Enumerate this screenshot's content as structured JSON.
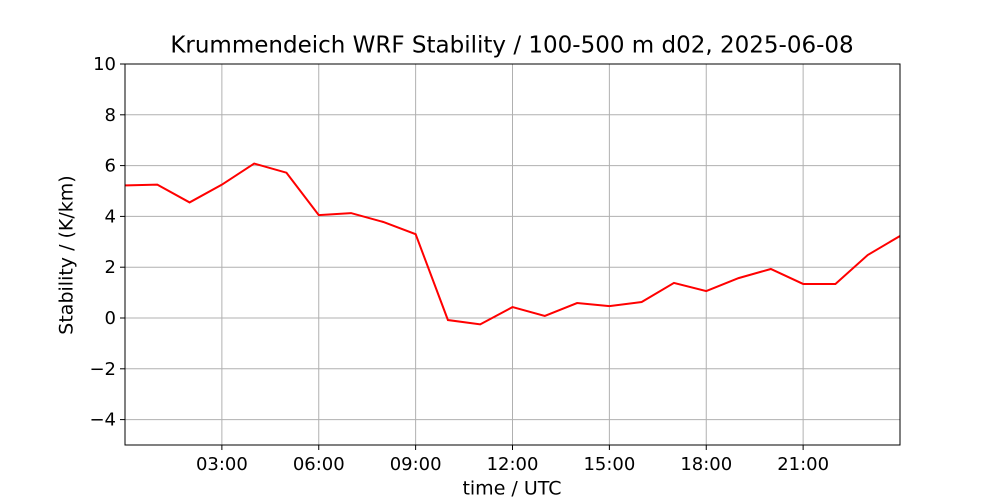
{
  "chart_data": {
    "type": "line",
    "title": "Krummendeich WRF Stability / 100-500 m  d02, 2025-06-08",
    "xlabel": "time / UTC",
    "ylabel": "Stability / (K/km)",
    "x": [
      0,
      1,
      2,
      3,
      4,
      5,
      6,
      7,
      8,
      9,
      10,
      11,
      12,
      13,
      14,
      15,
      16,
      17,
      18,
      19,
      20,
      21,
      22,
      23,
      24
    ],
    "series": [
      {
        "name": "Stability",
        "color": "#ff0000",
        "values": [
          5.22,
          5.25,
          4.55,
          5.25,
          6.08,
          5.72,
          4.05,
          4.13,
          3.78,
          3.3,
          -0.08,
          -0.25,
          0.43,
          0.08,
          0.59,
          0.47,
          0.63,
          1.38,
          1.06,
          1.57,
          1.93,
          1.34,
          1.34,
          2.48,
          3.23
        ]
      }
    ],
    "xlim": [
      0,
      24
    ],
    "xticks": [
      {
        "value": 3,
        "label": "03:00"
      },
      {
        "value": 6,
        "label": "06:00"
      },
      {
        "value": 9,
        "label": "09:00"
      },
      {
        "value": 12,
        "label": "12:00"
      },
      {
        "value": 15,
        "label": "15:00"
      },
      {
        "value": 18,
        "label": "18:00"
      },
      {
        "value": 21,
        "label": "21:00"
      }
    ],
    "ylim": [
      -5,
      10
    ],
    "yticks": [
      {
        "value": -4,
        "label": "−4"
      },
      {
        "value": -2,
        "label": "−2"
      },
      0,
      2,
      4,
      6,
      8,
      10
    ],
    "grid": true
  }
}
